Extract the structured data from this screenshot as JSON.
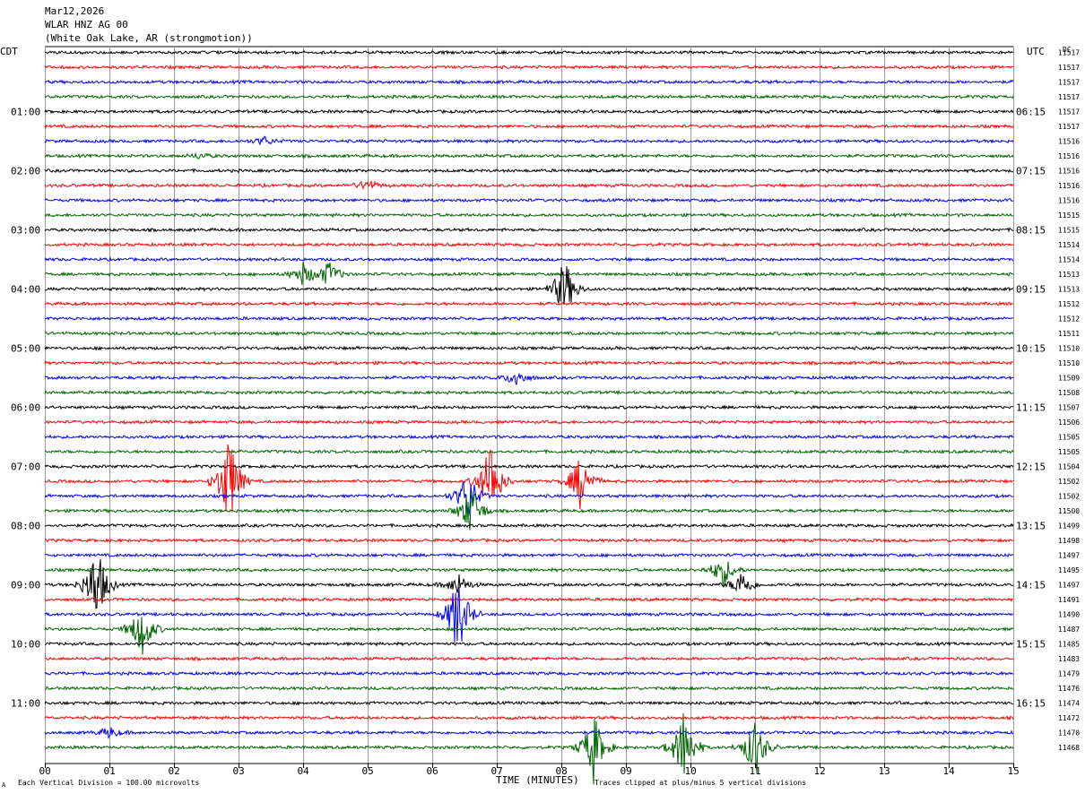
{
  "header": {
    "date": "Mar12,2026",
    "station": "WLAR HNZ AG 00",
    "location": "(White Oak Lake, AR (strongmotion))"
  },
  "labels": {
    "left_timezone": "CDT",
    "right_timezone": "UTC",
    "dc_header": "DC"
  },
  "footer": {
    "scale_note": "Each Vertical Division =  100.00 microvolts",
    "clip_note": "Traces clipped at plus/minus 5 vertical divisions",
    "corner_mark": "A"
  },
  "chart_data": {
    "type": "line",
    "title": "",
    "xlabel": "TIME (MINUTES)",
    "ylabel": "",
    "x_ticks": [
      "00",
      "01",
      "02",
      "03",
      "04",
      "05",
      "06",
      "07",
      "08",
      "09",
      "10",
      "11",
      "12",
      "13",
      "14",
      "15"
    ],
    "xlim": [
      0,
      15
    ],
    "grid": "vertical lines at each minute",
    "series_colors": [
      "#000000",
      "#ff0000",
      "#0000ff",
      "#006400"
    ],
    "left_hour_labels": [
      "01:00",
      "02:00",
      "03:00",
      "04:00",
      "05:00",
      "06:00",
      "07:00",
      "08:00",
      "09:00",
      "10:00",
      "11:00"
    ],
    "right_hour_labels": [
      "06:15",
      "07:15",
      "08:15",
      "09:15",
      "10:15",
      "11:15",
      "12:15",
      "13:15",
      "14:15",
      "15:15",
      "16:15"
    ],
    "dc_values": [
      "11517",
      "11517",
      "11517",
      "11517",
      "11517",
      "11517",
      "11516",
      "11516",
      "11516",
      "11516",
      "11516",
      "11515",
      "11515",
      "11514",
      "11514",
      "11513",
      "11513",
      "11512",
      "11512",
      "11511",
      "11510",
      "11510",
      "11509",
      "11508",
      "11507",
      "11506",
      "11505",
      "11505",
      "11504",
      "11502",
      "11502",
      "11500",
      "11499",
      "11498",
      "11497",
      "11495",
      "11497",
      "11491",
      "11490",
      "11487",
      "11485",
      "11483",
      "11479",
      "11476",
      "11474",
      "11472",
      "11470",
      "11468"
    ],
    "events": [
      {
        "row": 6,
        "minute": 3.4,
        "amp": 0.3
      },
      {
        "row": 7,
        "minute": 2.4,
        "amp": 0.2
      },
      {
        "row": 9,
        "minute": 5.0,
        "amp": 0.4
      },
      {
        "row": 15,
        "minute": 4.0,
        "amp": 0.8
      },
      {
        "row": 15,
        "minute": 4.4,
        "amp": 0.9
      },
      {
        "row": 16,
        "minute": 8.05,
        "amp": 2.2
      },
      {
        "row": 22,
        "minute": 7.3,
        "amp": 0.6
      },
      {
        "row": 29,
        "minute": 2.85,
        "amp": 3.5
      },
      {
        "row": 29,
        "minute": 6.9,
        "amp": 3.0
      },
      {
        "row": 29,
        "minute": 8.3,
        "amp": 2.0
      },
      {
        "row": 30,
        "minute": 6.55,
        "amp": 1.8
      },
      {
        "row": 31,
        "minute": 6.6,
        "amp": 2.0
      },
      {
        "row": 35,
        "minute": 10.5,
        "amp": 1.2
      },
      {
        "row": 36,
        "minute": 0.8,
        "amp": 3.0
      },
      {
        "row": 36,
        "minute": 6.4,
        "amp": 0.8
      },
      {
        "row": 36,
        "minute": 10.8,
        "amp": 1.0
      },
      {
        "row": 38,
        "minute": 6.4,
        "amp": 3.0
      },
      {
        "row": 39,
        "minute": 1.5,
        "amp": 2.0
      },
      {
        "row": 46,
        "minute": 1.0,
        "amp": 0.4
      },
      {
        "row": 47,
        "minute": 8.5,
        "amp": 2.5
      },
      {
        "row": 47,
        "minute": 9.9,
        "amp": 2.8
      },
      {
        "row": 47,
        "minute": 11.0,
        "amp": 2.2
      }
    ]
  }
}
